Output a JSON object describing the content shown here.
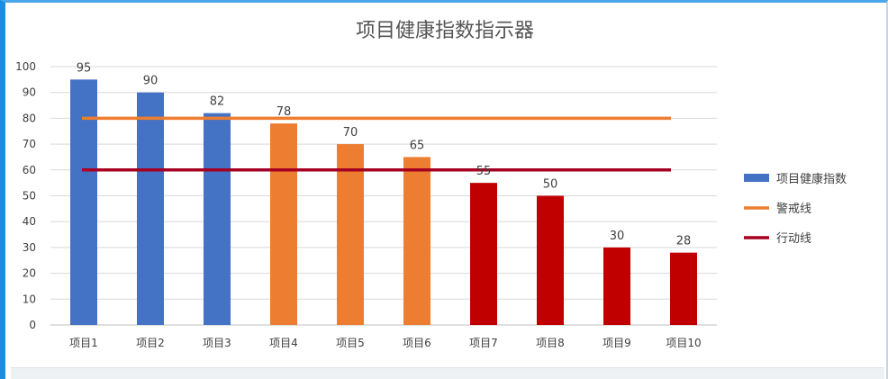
{
  "chart_data": {
    "type": "bar",
    "title": "项目健康指数指示器",
    "xlabel": "",
    "ylabel": "",
    "categories": [
      "项目1",
      "项目2",
      "项目3",
      "项目4",
      "项目5",
      "项目6",
      "项目7",
      "项目8",
      "项目9",
      "项目10"
    ],
    "series": [
      {
        "name": "项目健康指数",
        "values": [
          95,
          90,
          82,
          78,
          70,
          65,
          55,
          50,
          30,
          28
        ],
        "bar_colors": [
          "#4472c4",
          "#4472c4",
          "#4472c4",
          "#ed7d31",
          "#ed7d31",
          "#ed7d31",
          "#c00000",
          "#c00000",
          "#c00000",
          "#c00000"
        ]
      }
    ],
    "lines": [
      {
        "name": "警戒线",
        "value": 80,
        "color": "#ed7d31"
      },
      {
        "name": "行动线",
        "value": 60,
        "color": "#a50021"
      }
    ],
    "legend_items": [
      {
        "label": "项目健康指数",
        "color": "#4472c4",
        "shape": "bar"
      },
      {
        "label": "警戒线",
        "color": "#ed7d31",
        "shape": "line"
      },
      {
        "label": "行动线",
        "color": "#a50021",
        "shape": "line"
      }
    ],
    "ylim": [
      0,
      100
    ],
    "yticks": [
      "0",
      "10",
      "20",
      "30",
      "40",
      "50",
      "60",
      "70",
      "80",
      "90",
      "100"
    ],
    "grid": true,
    "legend_position": "right"
  }
}
